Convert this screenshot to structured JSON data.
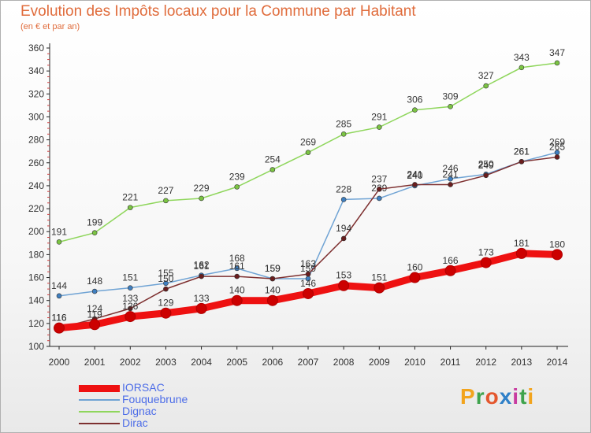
{
  "title": "Evolution des Impôts locaux pour la Commune par Habitant",
  "subtitle": "(en € et par an)",
  "brand": "Proxiti",
  "chart_data": {
    "type": "line",
    "title": "Evolution des Impôts locaux pour la Commune par Habitant",
    "subtitle": "(en € et par an)",
    "xlabel": "",
    "ylabel": "",
    "ylim": [
      100,
      360
    ],
    "yticks": [
      100,
      120,
      140,
      160,
      180,
      200,
      220,
      240,
      260,
      280,
      300,
      320,
      340,
      360
    ],
    "grid": false,
    "legend_position": "bottom-left",
    "x": [
      "2000",
      "2001",
      "2002",
      "2003",
      "2004",
      "2005",
      "2006",
      "2007",
      "2008",
      "2009",
      "2010",
      "2011",
      "2012",
      "2013",
      "2014"
    ],
    "series": [
      {
        "name": "Dignac",
        "color": "#8fd65c",
        "dot": "#7bc443",
        "values": [
          191,
          199,
          221,
          227,
          229,
          239,
          254,
          269,
          285,
          291,
          306,
          309,
          327,
          343,
          347
        ]
      },
      {
        "name": "Fouquebrune",
        "color": "#6fa3d4",
        "dot": "#3f7fc0",
        "values": [
          144,
          148,
          151,
          155,
          162,
          168,
          159,
          159,
          228,
          229,
          240,
          246,
          250,
          261,
          269
        ]
      },
      {
        "name": "Dirac",
        "color": "#7d2f2f",
        "dot": "#6a1d1d",
        "values": [
          116,
          124,
          133,
          150,
          161,
          161,
          159,
          163,
          194,
          237,
          241,
          241,
          249,
          261,
          265
        ]
      },
      {
        "name": "IORSAC",
        "color": "#ee1111",
        "dot": "#cc0000",
        "bold": true,
        "values": [
          116,
          119,
          126,
          129,
          133,
          140,
          140,
          146,
          153,
          151,
          160,
          166,
          173,
          181,
          180
        ]
      }
    ]
  },
  "legend": [
    {
      "name": "IORSAC",
      "color": "#ee1111",
      "width": 9
    },
    {
      "name": "Fouquebrune",
      "color": "#6fa3d4",
      "width": 2
    },
    {
      "name": "Dignac",
      "color": "#8fd65c",
      "width": 2
    },
    {
      "name": "Dirac",
      "color": "#7d2f2f",
      "width": 2
    }
  ]
}
